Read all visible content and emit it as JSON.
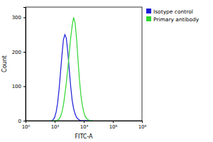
{
  "chart_data": {
    "type": "line",
    "log": "x",
    "x_label": "FITC-A",
    "y_label": "Count",
    "x": [
      63,
      79,
      100,
      126,
      158,
      200,
      251,
      316,
      398,
      501,
      631,
      794,
      1000,
      1259,
      1585,
      1995,
      2512,
      3162,
      3981,
      5012,
      6310,
      7943,
      10000,
      12589,
      15849,
      19953,
      25119,
      31623,
      39811
    ],
    "series": [
      {
        "name": "Isotype control",
        "color": "#1c1cd6",
        "values": [
          0,
          3,
          10,
          25,
          50,
          90,
          140,
          190,
          235,
          250,
          240,
          200,
          150,
          100,
          60,
          35,
          20,
          10,
          5,
          2,
          0,
          0,
          0,
          0,
          0,
          0,
          0,
          0,
          0
        ]
      },
      {
        "name": "Primary antibody",
        "color": "#2fd62f",
        "values": [
          0,
          0,
          0,
          0,
          2,
          5,
          12,
          25,
          45,
          75,
          110,
          150,
          195,
          240,
          275,
          300,
          285,
          240,
          180,
          120,
          75,
          45,
          25,
          12,
          6,
          3,
          1,
          0,
          0
        ]
      }
    ],
    "xlim": [
      1,
      100000000
    ],
    "xticks": [
      {
        "value": 1,
        "label": "10⁰"
      },
      {
        "value": 100,
        "label": "10²"
      },
      {
        "value": 10000,
        "label": "10⁴"
      },
      {
        "value": 1000000,
        "label": "10⁶"
      },
      {
        "value": 100000000,
        "label": "10⁸"
      }
    ],
    "ylim": [
      0,
      330
    ],
    "yticks": [
      0,
      100,
      200,
      300
    ],
    "legend": "top-right",
    "grid": false
  }
}
